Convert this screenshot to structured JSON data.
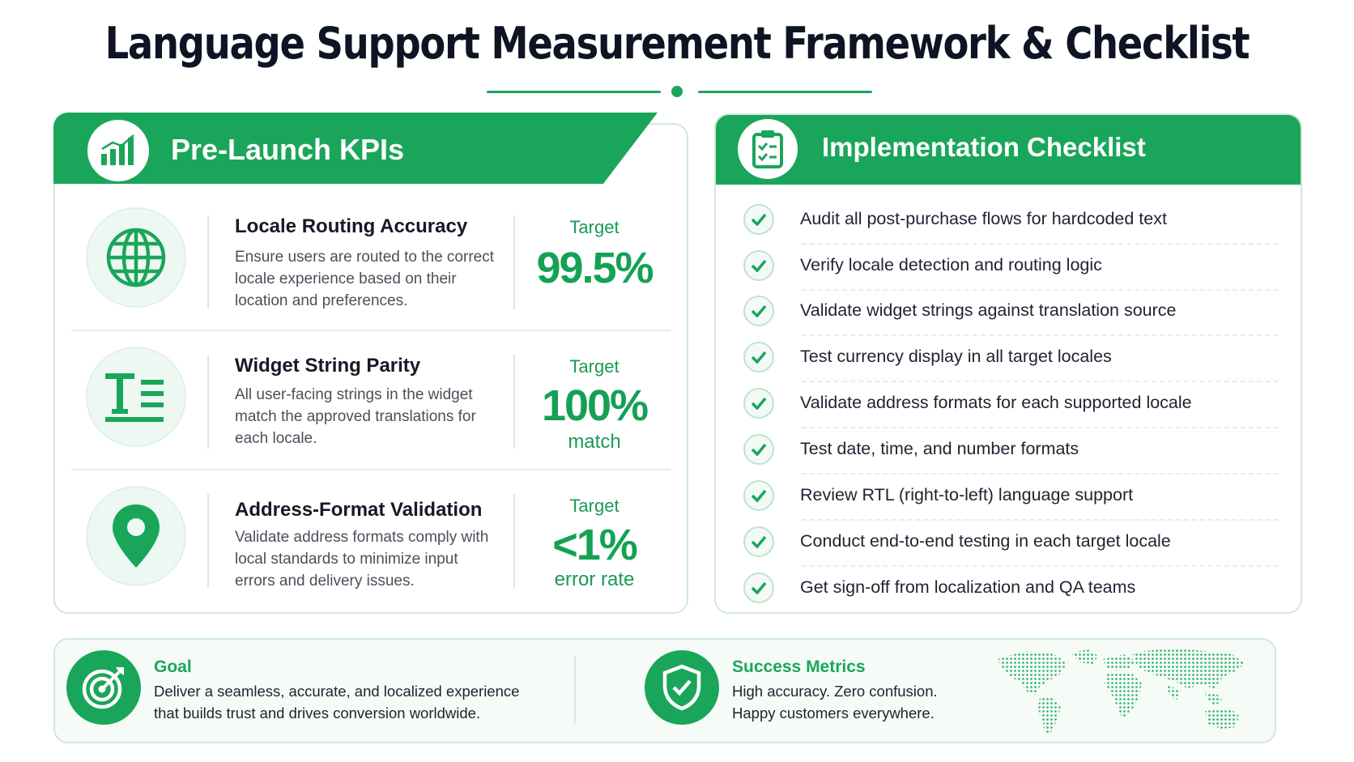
{
  "title": "Language Support Measurement Framework & Checklist",
  "colors": {
    "accent": "#1aa65a",
    "accent_light": "#eef8f2",
    "text": "#1c2230"
  },
  "kpi_section": {
    "title": "Pre-Launch KPIs",
    "icon": "bar-chart-icon",
    "items": [
      {
        "icon": "globe-icon",
        "title": "Locale Routing Accuracy",
        "description": "Ensure users are routed to the correct locale experience based on their location and preferences.",
        "target_label": "Target",
        "value": "99.5%",
        "sub": ""
      },
      {
        "icon": "text-icon",
        "title": "Widget String Parity",
        "description": "All user-facing strings in the widget match the approved translations for each locale.",
        "target_label": "Target",
        "value": "100%",
        "sub": "match"
      },
      {
        "icon": "location-pin-icon",
        "title": "Address-Format Validation",
        "description": "Validate address formats comply with local standards to minimize input errors and delivery issues.",
        "target_label": "Target",
        "value": "<1%",
        "sub": "error rate"
      }
    ]
  },
  "checklist": {
    "title": "Implementation Checklist",
    "icon": "clipboard-check-icon",
    "items": [
      "Audit all post-purchase flows for hardcoded text",
      "Verify locale detection and routing logic",
      "Validate widget strings against translation source",
      "Test currency display in all target locales",
      "Validate address formats for each supported locale",
      "Test date, time, and number formats",
      "Review RTL (right-to-left) language support",
      "Conduct end-to-end testing in each target locale",
      "Get sign-off from localization and QA teams"
    ]
  },
  "footer": {
    "goal": {
      "icon": "target-icon",
      "title": "Goal",
      "line1": "Deliver a seamless, accurate, and localized experience",
      "line2": "that builds trust and drives conversion worldwide."
    },
    "success": {
      "icon": "shield-check-icon",
      "title": "Success Metrics",
      "line1": "High accuracy. Zero confusion.",
      "line2": "Happy customers everywhere."
    },
    "map_icon": "world-map-icon"
  }
}
